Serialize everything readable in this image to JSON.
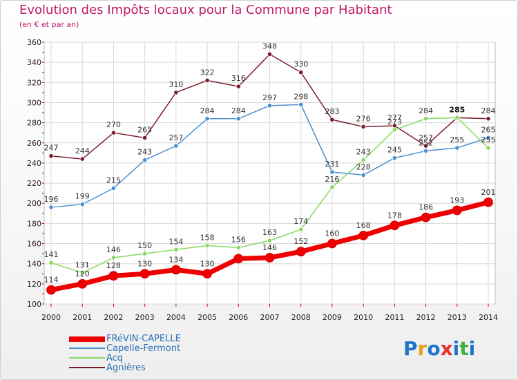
{
  "chart_data": {
    "type": "line",
    "title": "Evolution des Impôts locaux pour la Commune par Habitant",
    "subtitle": "(en € et par an)",
    "x": [
      2000,
      2001,
      2002,
      2003,
      2004,
      2005,
      2006,
      2007,
      2008,
      2009,
      2010,
      2011,
      2012,
      2013,
      2014
    ],
    "ylim": [
      100,
      360
    ],
    "yticks": [
      100,
      120,
      140,
      160,
      180,
      200,
      220,
      240,
      260,
      280,
      300,
      320,
      340,
      360
    ],
    "grid": true,
    "legend_position": "bottom-left",
    "series": [
      {
        "name": "Agnières",
        "color": "#7a1c2a",
        "values": [
          247,
          244,
          270,
          265,
          310,
          322,
          316,
          348,
          330,
          283,
          276,
          277,
          257,
          285,
          284
        ]
      },
      {
        "name": "Capelle-Fermont",
        "color": "#4a8fd0",
        "values": [
          196,
          199,
          215,
          243,
          257,
          284,
          284,
          297,
          298,
          231,
          228,
          245,
          252,
          255,
          265
        ]
      },
      {
        "name": "Acq",
        "color": "#88d860",
        "values": [
          141,
          131,
          146,
          150,
          154,
          158,
          156,
          163,
          174,
          216,
          243,
          273,
          284,
          285,
          255
        ]
      },
      {
        "name": "FRéVIN-CAPELLE",
        "color": "#ee0000",
        "values": [
          114,
          120,
          128,
          130,
          134,
          130,
          145,
          146,
          152,
          160,
          168,
          178,
          186,
          193,
          201
        ]
      }
    ],
    "data_labels": [
      {
        "series": "Agnières",
        "values": [
          247,
          244,
          270,
          265,
          310,
          322,
          316,
          348,
          330,
          283,
          276,
          277,
          257,
          285,
          284
        ]
      },
      {
        "series": "Capelle-Fermont",
        "values": [
          196,
          199,
          215,
          243,
          257,
          284,
          284,
          297,
          298,
          231,
          228,
          245,
          252,
          255,
          265
        ]
      },
      {
        "series": "Acq",
        "values": [
          141,
          131,
          146,
          150,
          154,
          158,
          156,
          163,
          174,
          216,
          243,
          273,
          284,
          null,
          255
        ]
      },
      {
        "series": "FRéVIN-CAPELLE",
        "values": [
          114,
          120,
          128,
          130,
          134,
          130,
          null,
          146,
          152,
          160,
          168,
          178,
          186,
          193,
          201
        ]
      }
    ]
  },
  "legend": {
    "items": [
      {
        "label": "FRéVIN-CAPELLE",
        "color": "#ee0000"
      },
      {
        "label": "Capelle-Fermont",
        "color": "#4a8fd0"
      },
      {
        "label": "Acq",
        "color": "#88d860"
      },
      {
        "label": "Agnières",
        "color": "#7a1c2a"
      }
    ]
  },
  "brand": {
    "letters": [
      "P",
      "r",
      "o",
      "x",
      "i",
      "t",
      "i"
    ],
    "colors": [
      "#1e73c8",
      "#e8a020",
      "#1e73c8",
      "#e83030",
      "#1e73c8",
      "#40b040",
      "#1e73c8"
    ]
  }
}
